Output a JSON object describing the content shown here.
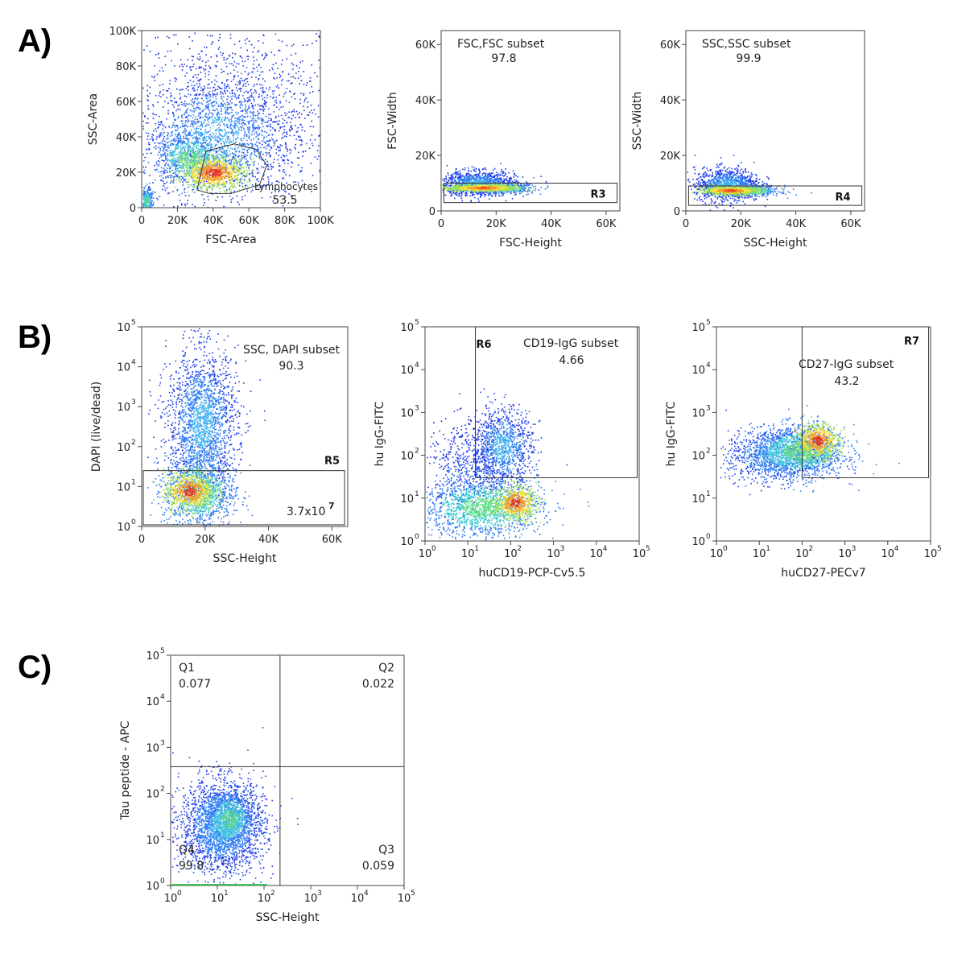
{
  "panel_labels": [
    "A)",
    "B)",
    "C)"
  ],
  "chart_data": [
    {
      "id": "A1",
      "type": "scatter",
      "xlabel": "FSC-Area",
      "ylabel": "SSC-Area",
      "xlim": [
        0,
        100000
      ],
      "ylim": [
        0,
        100000
      ],
      "x_ticks": [
        0,
        20000,
        40000,
        60000,
        80000,
        100000
      ],
      "x_tick_labels": [
        "0",
        "20K",
        "40K",
        "60K",
        "80K",
        "100K"
      ],
      "y_ticks": [
        0,
        20000,
        40000,
        60000,
        80000,
        100000
      ],
      "y_tick_labels": [
        "0",
        "20K",
        "40K",
        "60K",
        "80K",
        "100K"
      ],
      "gates": [
        {
          "kind": "polygon",
          "label": "Lymphocytes",
          "value": "53.5",
          "points": [
            [
              31000,
              10000
            ],
            [
              36000,
              32000
            ],
            [
              52000,
              36000
            ],
            [
              64000,
              33000
            ],
            [
              70000,
              24000
            ],
            [
              66000,
              13000
            ],
            [
              50000,
              8000
            ],
            [
              38000,
              8000
            ]
          ]
        }
      ],
      "density": [
        {
          "cx": 40000,
          "cy": 20000,
          "sx": 9000,
          "sy": 4500,
          "n": 900,
          "level": "high"
        },
        {
          "cx": 26000,
          "cy": 28000,
          "sx": 9000,
          "sy": 7000,
          "n": 700,
          "level": "mid"
        },
        {
          "cx": 42000,
          "cy": 40000,
          "sx": 22000,
          "sy": 18000,
          "n": 1800,
          "level": "low"
        },
        {
          "cx": 55000,
          "cy": 60000,
          "sx": 30000,
          "sy": 25000,
          "n": 900,
          "level": "sparse"
        },
        {
          "cx": 2500,
          "cy": 4000,
          "sx": 1500,
          "sy": 3500,
          "n": 250,
          "level": "mid"
        }
      ]
    },
    {
      "id": "A2",
      "type": "scatter",
      "xlabel": "FSC-Height",
      "ylabel": "FSC-Width",
      "xlim": [
        0,
        65000
      ],
      "ylim": [
        0,
        65000
      ],
      "x_ticks": [
        0,
        20000,
        40000,
        60000
      ],
      "x_tick_labels": [
        "0",
        "20K",
        "40K",
        "60K"
      ],
      "y_ticks": [
        0,
        20000,
        40000,
        60000
      ],
      "y_tick_labels": [
        "0",
        "20K",
        "40K",
        "60K"
      ],
      "gates": [
        {
          "kind": "rect",
          "label": "FSC,FSC subset",
          "value": "97.8",
          "tag": "R3",
          "x": [
            1000,
            64000
          ],
          "y": [
            3000,
            10000
          ]
        }
      ],
      "density": [
        {
          "cx": 15000,
          "cy": 8500,
          "sx": 6000,
          "sy": 600,
          "n": 900,
          "level": "high"
        },
        {
          "cx": 13000,
          "cy": 10000,
          "sx": 7000,
          "sy": 2200,
          "n": 1200,
          "level": "low"
        },
        {
          "cx": 22000,
          "cy": 8300,
          "sx": 6000,
          "sy": 900,
          "n": 400,
          "level": "mid"
        }
      ]
    },
    {
      "id": "A3",
      "type": "scatter",
      "xlabel": "SSC-Height",
      "ylabel": "SSC-Width",
      "xlim": [
        0,
        65000
      ],
      "ylim": [
        0,
        65000
      ],
      "x_ticks": [
        0,
        20000,
        40000,
        60000
      ],
      "x_tick_labels": [
        "0",
        "20K",
        "40K",
        "60K"
      ],
      "y_ticks": [
        0,
        20000,
        40000,
        60000
      ],
      "y_tick_labels": [
        "0",
        "20K",
        "40K",
        "60K"
      ],
      "gates": [
        {
          "kind": "rect",
          "label": "SSC,SSC subset",
          "value": "99.9",
          "tag": "R4",
          "x": [
            1000,
            64000
          ],
          "y": [
            2000,
            9000
          ]
        }
      ],
      "density": [
        {
          "cx": 16000,
          "cy": 7500,
          "sx": 5000,
          "sy": 700,
          "n": 900,
          "level": "high"
        },
        {
          "cx": 15000,
          "cy": 9500,
          "sx": 6000,
          "sy": 3000,
          "n": 1100,
          "level": "low"
        },
        {
          "cx": 24000,
          "cy": 7500,
          "sx": 5000,
          "sy": 900,
          "n": 400,
          "level": "mid"
        }
      ]
    },
    {
      "id": "B1",
      "type": "scatter",
      "xlabel": "SSC-Height",
      "ylabel": "DAPI (live/dead)",
      "xlim": [
        0,
        65000
      ],
      "ylog": true,
      "ylim": [
        1,
        100000
      ],
      "x_ticks": [
        0,
        20000,
        40000,
        60000
      ],
      "x_tick_labels": [
        "0",
        "20K",
        "40K",
        "60K"
      ],
      "y_ticks": [
        1,
        10,
        100,
        1000,
        10000,
        100000
      ],
      "y_tick_labels": [
        "10",
        "10",
        "10",
        "10",
        "10",
        "10"
      ],
      "y_tick_exponents": [
        "0",
        "1",
        "2",
        "3",
        "4",
        "5"
      ],
      "gates": [
        {
          "kind": "rect",
          "label": "SSC, DAPI subset",
          "value": "90.3",
          "tag": "R5",
          "x": [
            500,
            64000
          ],
          "y": [
            1.1,
            25
          ]
        }
      ],
      "count_label": "3.7x10",
      "count_exponent": "7",
      "density": [
        {
          "cx": 15000,
          "cy": 0.9,
          "sx": 4000,
          "sy": 0.25,
          "n": 700,
          "level": "high"
        },
        {
          "cx": 18000,
          "cy": 0.9,
          "sx": 5500,
          "sy": 0.45,
          "n": 1100,
          "level": "mid"
        },
        {
          "cx": 19000,
          "cy": 2.6,
          "sx": 5500,
          "sy": 0.9,
          "n": 2000,
          "level": "low"
        }
      ]
    },
    {
      "id": "B2",
      "type": "scatter",
      "xlabel": "huCD19-PCP-Cv5.5",
      "ylabel": "hu IgG-FITC",
      "xlog": true,
      "ylog": true,
      "xlim": [
        1,
        100000
      ],
      "ylim": [
        1,
        100000
      ],
      "x_ticks": [
        1,
        10,
        100,
        1000,
        10000,
        100000
      ],
      "x_tick_labels": [
        "10",
        "10",
        "10",
        "10",
        "10",
        "10"
      ],
      "x_tick_exponents": [
        "0",
        "1",
        "2",
        "3",
        "4",
        "5"
      ],
      "y_ticks": [
        1,
        10,
        100,
        1000,
        10000,
        100000
      ],
      "y_tick_labels": [
        "10",
        "10",
        "10",
        "10",
        "10",
        "10"
      ],
      "y_tick_exponents": [
        "0",
        "1",
        "2",
        "3",
        "4",
        "5"
      ],
      "gates": [
        {
          "kind": "rect",
          "label": "CD19-IgG subset",
          "value": "4.66",
          "tag": "R6",
          "x": [
            15,
            90000
          ],
          "y": [
            30,
            100000
          ]
        }
      ],
      "density": [
        {
          "cx": 2.1,
          "cy": 0.9,
          "sx": 0.25,
          "sy": 0.2,
          "n": 600,
          "level": "high"
        },
        {
          "cx": 1.3,
          "cy": 0.8,
          "sx": 0.7,
          "sy": 0.35,
          "n": 1500,
          "level": "mid"
        },
        {
          "cx": 1.8,
          "cy": 2.2,
          "sx": 0.35,
          "sy": 0.45,
          "n": 1000,
          "level": "low"
        },
        {
          "cx": 1.0,
          "cy": 1.8,
          "sx": 0.5,
          "sy": 0.5,
          "n": 500,
          "level": "sparse"
        }
      ]
    },
    {
      "id": "B3",
      "type": "scatter",
      "xlabel": "huCD27-PECv7",
      "ylabel": "hu IgG-FITC",
      "xlog": true,
      "ylog": true,
      "xlim": [
        1,
        100000
      ],
      "ylim": [
        1,
        100000
      ],
      "x_ticks": [
        1,
        10,
        100,
        1000,
        10000,
        100000
      ],
      "x_tick_labels": [
        "10",
        "10",
        "10",
        "10",
        "10",
        "10"
      ],
      "x_tick_exponents": [
        "0",
        "1",
        "2",
        "3",
        "4",
        "5"
      ],
      "y_ticks": [
        1,
        10,
        100,
        1000,
        10000,
        100000
      ],
      "y_tick_labels": [
        "10",
        "10",
        "10",
        "10",
        "10",
        "10"
      ],
      "y_tick_exponents": [
        "0",
        "1",
        "2",
        "3",
        "4",
        "5"
      ],
      "gates": [
        {
          "kind": "rect",
          "label": "CD27-IgG subset",
          "value": "43.2",
          "tag": "R7",
          "x": [
            100,
            90000
          ],
          "y": [
            30,
            100000
          ]
        }
      ],
      "density": [
        {
          "cx": 2.35,
          "cy": 2.35,
          "sx": 0.25,
          "sy": 0.2,
          "n": 600,
          "level": "high"
        },
        {
          "cx": 1.9,
          "cy": 2.1,
          "sx": 0.55,
          "sy": 0.3,
          "n": 1400,
          "level": "mid"
        },
        {
          "cx": 1.4,
          "cy": 2.0,
          "sx": 0.6,
          "sy": 0.3,
          "n": 1000,
          "level": "low"
        }
      ]
    },
    {
      "id": "C1",
      "type": "scatter",
      "xlabel": "SSC-Height",
      "ylabel": "Tau peptide - APC",
      "xlog": true,
      "ylog": true,
      "xlim": [
        1,
        100000
      ],
      "ylim": [
        1,
        100000
      ],
      "x_ticks": [
        1,
        10,
        100,
        1000,
        10000,
        100000
      ],
      "x_tick_labels": [
        "10",
        "10",
        "10",
        "10",
        "10",
        "10"
      ],
      "x_tick_exponents": [
        "0",
        "1",
        "2",
        "3",
        "4",
        "5"
      ],
      "y_ticks": [
        1,
        10,
        100,
        1000,
        10000,
        100000
      ],
      "y_tick_labels": [
        "10",
        "10",
        "10",
        "10",
        "10",
        "10"
      ],
      "y_tick_exponents": [
        "0",
        "1",
        "2",
        "3",
        "4",
        "5"
      ],
      "quadrants": {
        "x_split": 220,
        "y_split": 380,
        "Q1": "0.077",
        "Q2": "0.022",
        "Q3": "0.059",
        "Q4": "99.8"
      },
      "density": [
        {
          "cx": 1.25,
          "cy": 1.45,
          "sx": 0.25,
          "sy": 0.3,
          "n": 800,
          "level": "mid"
        },
        {
          "cx": 1.1,
          "cy": 1.3,
          "sx": 0.45,
          "sy": 0.5,
          "n": 2400,
          "level": "low"
        }
      ]
    }
  ]
}
